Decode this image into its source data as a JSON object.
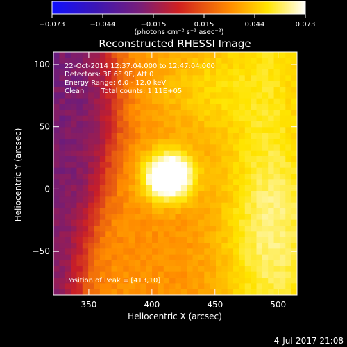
{
  "chart_data": {
    "type": "heatmap",
    "title": "Reconstructed RHESSI Image",
    "colorbar": {
      "ticks": [
        "−0.073",
        "−0.044",
        "−0.015",
        "0.015",
        "0.044",
        "0.073"
      ],
      "vmin": -0.073,
      "vmax": 0.073,
      "units_label": "(photons cm⁻² s⁻¹ asec⁻²)"
    },
    "xlabel": "Heliocentric X (arcsec)",
    "ylabel": "Heliocentric Y (arcsec)",
    "xlim": [
      322,
      515
    ],
    "ylim": [
      -85,
      110
    ],
    "xticks": [
      "350",
      "400",
      "450",
      "500"
    ],
    "yticks": [
      "100",
      "50",
      "0",
      "−50"
    ],
    "xtick_values": [
      350,
      400,
      450,
      500
    ],
    "ytick_values": [
      100,
      50,
      0,
      -50
    ],
    "annotations": [
      "22-Oct-2014 12:37:04.000 to 12:47:04.000",
      "Detectors: 3F 6F 9F, Att 0",
      "Energy Range: 6.0 - 12.0 keV",
      "Clean",
      "Total counts: 1.11E+05"
    ],
    "peak_label": "Position of Peak = [413,10]",
    "peak": [
      413,
      10
    ],
    "grid": false,
    "colormap": [
      "#1010ff",
      "#3a16b6",
      "#5a1c8c",
      "#c81e28",
      "#ff8a00",
      "#ffe400",
      "#ffffff"
    ]
  },
  "footer": {
    "date": "4-Jul-2017 21:08"
  }
}
